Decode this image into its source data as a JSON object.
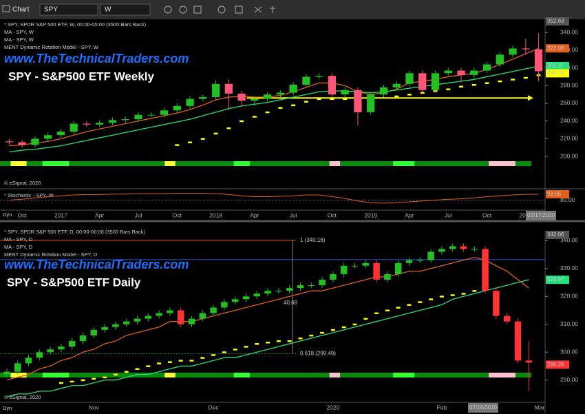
{
  "toolbar": {
    "title": "Chart",
    "symbol": "SPY",
    "interval": "W"
  },
  "chart_data": [
    {
      "type": "candlestick",
      "name": "* SPY, SPDR S&P 500 ETF, W, 00:00-00:00 (3500 Bars Back)",
      "watermark": "www.TheTechnicalTraders.com",
      "title": "SPY - S&P500 ETF Weekly",
      "copyright": "© eSignal, 2020",
      "corner_label": "Dyn",
      "cursor_date": "02/17/2020",
      "up_color": "#22c022",
      "down_color": "#ff5577",
      "close_tag_color": "#ffff00",
      "categories": [
        null,
        "Oct",
        null,
        null,
        "2017",
        null,
        null,
        "Apr",
        null,
        null,
        "Jul",
        null,
        null,
        "Oct",
        null,
        null,
        "2018",
        null,
        null,
        "Apr",
        null,
        null,
        "Jul",
        null,
        null,
        "Oct",
        null,
        null,
        "2019",
        null,
        null,
        "Apr",
        null,
        null,
        "Jul",
        null,
        null,
        "Oct",
        null,
        null,
        "2020",
        null
      ],
      "open": [
        217,
        216,
        213,
        220,
        224,
        228,
        237,
        236,
        238,
        241,
        242,
        247,
        247,
        252,
        257,
        265,
        267,
        282,
        271,
        263,
        265,
        270,
        272,
        281,
        290,
        291,
        270,
        275,
        250,
        270,
        278,
        282,
        294,
        275,
        294,
        297,
        292,
        297,
        304,
        315,
        322,
        321
      ],
      "high": [
        220,
        219,
        223,
        227,
        231,
        240,
        240,
        241,
        244,
        245,
        250,
        250,
        255,
        260,
        268,
        270,
        286,
        287,
        274,
        268,
        273,
        275,
        284,
        293,
        294,
        294,
        278,
        278,
        273,
        281,
        285,
        297,
        297,
        297,
        300,
        300,
        300,
        307,
        318,
        325,
        333,
        339
      ],
      "low": [
        213,
        210,
        210,
        217,
        221,
        225,
        233,
        233,
        235,
        238,
        239,
        244,
        244,
        249,
        254,
        262,
        264,
        252,
        257,
        257,
        262,
        267,
        269,
        278,
        287,
        267,
        267,
        235,
        247,
        267,
        275,
        279,
        272,
        272,
        291,
        284,
        289,
        294,
        301,
        312,
        315,
        285
      ],
      "close": [
        216,
        213,
        220,
        224,
        228,
        237,
        236,
        238,
        241,
        242,
        247,
        247,
        252,
        257,
        265,
        267,
        282,
        271,
        263,
        265,
        270,
        272,
        281,
        290,
        291,
        270,
        275,
        250,
        270,
        278,
        282,
        294,
        275,
        294,
        297,
        292,
        297,
        304,
        315,
        322,
        321,
        296.26
      ],
      "series": [
        {
          "name": "MA - SPY, W",
          "color": "#e0601a",
          "price_tag": true,
          "values": [
            212,
            213,
            215,
            217,
            220,
            224,
            228,
            231,
            234,
            237,
            240,
            243,
            246,
            249,
            253,
            258,
            264,
            267,
            268,
            267,
            267,
            269,
            273,
            278,
            283,
            283,
            280,
            273,
            270,
            272,
            276,
            283,
            285,
            287,
            290,
            292,
            294,
            298,
            304,
            310,
            316,
            322.08
          ]
        },
        {
          "name": "MA - SPY, W",
          "color": "#22e07a",
          "price_tag": true,
          "values": [
            205,
            207,
            208,
            210,
            212,
            215,
            218,
            221,
            224,
            227,
            230,
            233,
            236,
            239,
            242,
            246,
            250,
            254,
            257,
            259,
            261,
            264,
            267,
            270,
            273,
            274,
            274,
            273,
            272,
            273,
            275,
            277,
            279,
            281,
            283,
            285,
            287,
            290,
            293,
            296,
            299,
            302.07
          ]
        },
        {
          "name": "MENT Dynamic Rotation Model - SPY, W",
          "color": "#ffff00",
          "style": "dots",
          "values": [
            null,
            null,
            null,
            null,
            null,
            null,
            null,
            null,
            null,
            null,
            null,
            null,
            null,
            213,
            216,
            220,
            226,
            232,
            240,
            245,
            250,
            255,
            258,
            262,
            265,
            265,
            265,
            265,
            null,
            null,
            268,
            270,
            272,
            274,
            276,
            279,
            281,
            283,
            285,
            287,
            289,
            292
          ]
        }
      ],
      "hlines": [
        {
          "value": 266,
          "color": "#ffff00",
          "arrow": true
        }
      ],
      "ylim": [
        165,
        352.63
      ],
      "yticks": [
        {
          "value": 200,
          "label": "200.00"
        },
        {
          "value": 220,
          "label": "220.00"
        },
        {
          "value": 240,
          "label": "240.00"
        },
        {
          "value": 260,
          "label": "260.00"
        },
        {
          "value": 280,
          "label": "280.00"
        },
        {
          "value": 300,
          "label": "300.00"
        },
        {
          "value": 320,
          "label": "320.00"
        },
        {
          "value": 340,
          "label": "340.00"
        }
      ],
      "indicator": {
        "name": "* Stochastic - SPY, W",
        "color": "#e0601a",
        "ylim": [
          60,
          100
        ],
        "yticks": [
          {
            "value": 80,
            "label": "80.00"
          }
        ],
        "values": [
          80,
          82,
          85,
          88,
          90,
          92,
          93,
          93,
          94,
          94,
          95,
          95,
          95,
          96,
          96,
          96,
          95,
          93,
          90,
          88,
          88,
          89,
          90,
          92,
          92,
          88,
          84,
          78,
          74,
          73,
          74,
          76,
          78,
          80,
          82,
          83,
          85,
          88,
          90,
          92,
          93.5,
          93.66
        ]
      }
    },
    {
      "type": "candlestick",
      "name": "* SPY, SPDR S&P 500 ETF, D, 00:00-00:00 (3500 Bars Back)",
      "watermark": "www.TheTechnicalTraders.com",
      "title": "SPY - S&P500 ETF Daily",
      "copyright": "© eSignal, 2020",
      "corner_label": "Dyn",
      "cursor_date": "02/18/2020",
      "up_color": "#22c022",
      "down_color": "#ff3333",
      "close_tag_color": "#ff3333",
      "categories": [
        null,
        null,
        null,
        null,
        null,
        null,
        null,
        null,
        "Nov",
        null,
        null,
        null,
        null,
        null,
        null,
        null,
        null,
        null,
        null,
        "Dec",
        null,
        null,
        null,
        null,
        null,
        null,
        null,
        null,
        null,
        null,
        "2020",
        null,
        null,
        null,
        null,
        null,
        null,
        null,
        null,
        null,
        "Feb",
        null,
        null,
        null,
        null,
        null,
        null,
        null,
        null,
        "Mar"
      ],
      "open": [
        292,
        293,
        296,
        298,
        300,
        301,
        302,
        304,
        306,
        308,
        309,
        310,
        311,
        312,
        313,
        314,
        315,
        310,
        312,
        314,
        316,
        318,
        319,
        320,
        321,
        322,
        322,
        323,
        324,
        324,
        326,
        328,
        331,
        331,
        332,
        326,
        328,
        332,
        333,
        333,
        336,
        337,
        338,
        337,
        337,
        322,
        313,
        311,
        297,
        null
      ],
      "high": [
        294,
        297,
        299,
        301,
        302,
        303,
        305,
        307,
        309,
        310,
        311,
        312,
        313,
        314,
        315,
        316,
        316,
        313,
        315,
        317,
        319,
        320,
        321,
        322,
        323,
        323,
        324,
        325,
        325,
        327,
        329,
        332,
        332,
        333,
        333,
        329,
        333,
        334,
        334,
        337,
        338,
        339,
        339,
        338,
        338,
        323,
        314,
        312,
        304,
        null
      ],
      "low": [
        291,
        292,
        295,
        297,
        299,
        300,
        301,
        303,
        305,
        307,
        308,
        309,
        310,
        311,
        312,
        313,
        309,
        309,
        311,
        313,
        315,
        317,
        318,
        319,
        320,
        321,
        321,
        322,
        323,
        323,
        325,
        327,
        330,
        330,
        325,
        325,
        327,
        331,
        332,
        332,
        335,
        336,
        336,
        336,
        321,
        312,
        310,
        296,
        286,
        null
      ],
      "close": [
        293,
        296,
        298,
        300,
        301,
        302,
        304,
        306,
        308,
        309,
        310,
        311,
        312,
        313,
        314,
        315,
        310,
        312,
        314,
        316,
        318,
        319,
        320,
        321,
        322,
        322,
        323,
        324,
        324,
        326,
        328,
        331,
        331,
        332,
        326,
        328,
        332,
        333,
        333,
        336,
        337,
        338,
        337,
        337,
        322,
        313,
        311,
        297,
        296.26,
        null
      ],
      "series": [
        {
          "name": "MA - SPY, D",
          "color": "#e0601a",
          "values": [
            290,
            291,
            292,
            294,
            295,
            297,
            298,
            300,
            301,
            303,
            304,
            306,
            307,
            308,
            309,
            311,
            311,
            311,
            312,
            313,
            314,
            315,
            316,
            317,
            318,
            319,
            320,
            321,
            322,
            322,
            323,
            324,
            325,
            326,
            327,
            327,
            328,
            329,
            329,
            330,
            331,
            332,
            333,
            334,
            333,
            331,
            329,
            326,
            323,
            null
          ]
        },
        {
          "name": "MA - SPY, D",
          "color": "#22e07a",
          "price_tag": true,
          "values": [
            284,
            285,
            285,
            286,
            286,
            287,
            288,
            288,
            289,
            290,
            290,
            291,
            292,
            292,
            293,
            294,
            295,
            295,
            296,
            297,
            298,
            298,
            299,
            300,
            301,
            302,
            303,
            304,
            305,
            306,
            307,
            308,
            309,
            310,
            311,
            312,
            313,
            314,
            315,
            316,
            317,
            319,
            320,
            321,
            322,
            323,
            324,
            325,
            325.97,
            null
          ]
        },
        {
          "name": "MENT Dynamic Rotation Model - SPY, D",
          "color": "#ffff00",
          "style": "dots",
          "values": [
            null,
            null,
            null,
            null,
            null,
            289,
            289.5,
            290,
            290.5,
            291,
            292,
            293,
            294,
            295,
            296,
            296.5,
            297,
            297,
            298,
            299,
            300,
            301,
            302,
            303,
            303.5,
            304,
            304,
            305,
            306,
            307,
            308,
            309,
            310,
            312,
            314,
            315,
            316,
            317,
            318,
            319,
            320,
            320.5,
            321,
            322,
            322.5,
            null,
            null,
            null,
            null,
            null
          ]
        }
      ],
      "hlines": [
        {
          "value": 333.2,
          "color": "#3355dd"
        }
      ],
      "annotations": [
        {
          "text": "1 (340.16)",
          "value": 340.16,
          "color": "#e0601a"
        },
        {
          "text": "0.618 (299.49)",
          "value": 299.49,
          "color": "#1f9e3a"
        },
        {
          "text": "40.68"
        }
      ],
      "ylim": [
        283,
        342.06
      ],
      "yticks": [
        {
          "value": 290,
          "label": "290.00"
        },
        {
          "value": 300,
          "label": "300.00"
        },
        {
          "value": 310,
          "label": "310.00"
        },
        {
          "value": 320,
          "label": "320.00"
        },
        {
          "value": 330,
          "label": "330.00"
        },
        {
          "value": 340,
          "label": "340.00"
        }
      ]
    }
  ]
}
